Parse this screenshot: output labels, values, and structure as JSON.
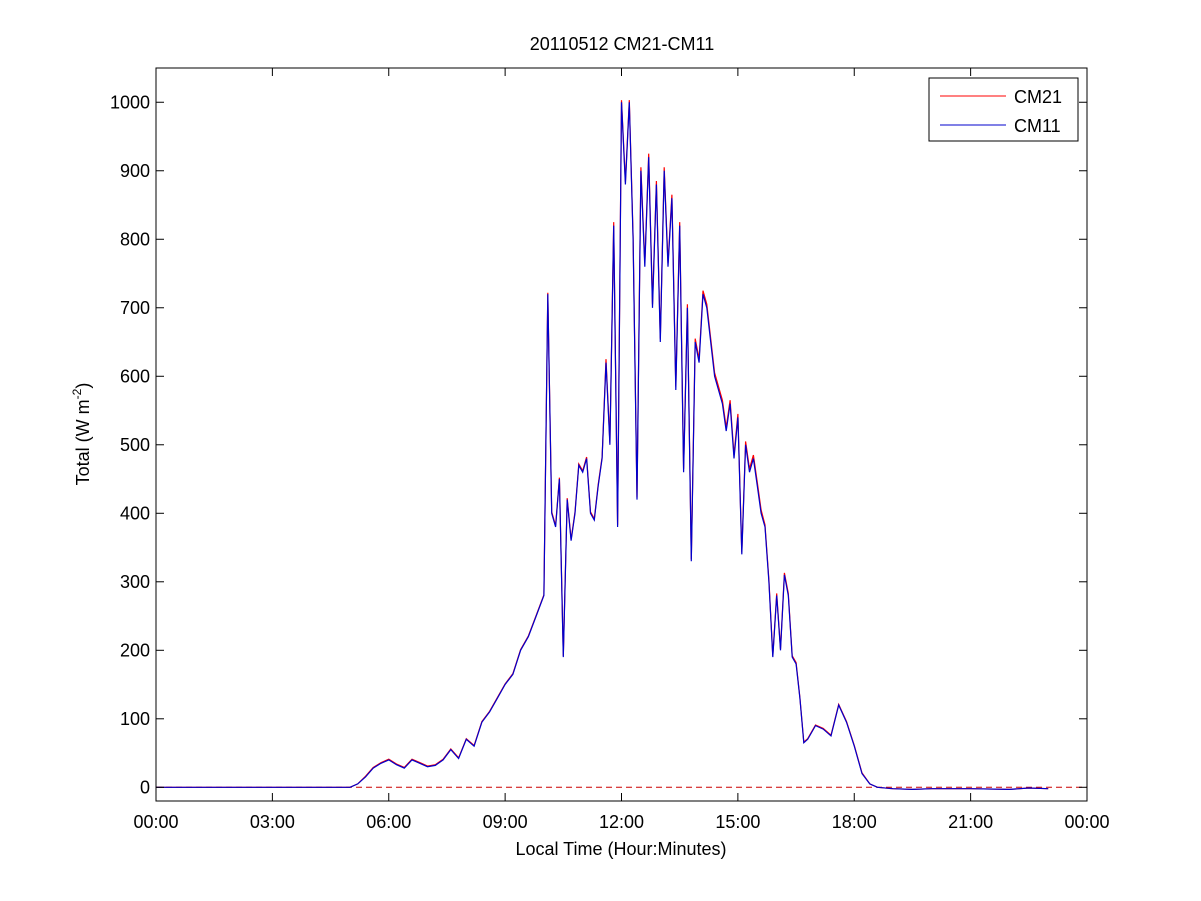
{
  "chart_data": {
    "type": "line",
    "title": "20110512 CM21-CM11",
    "xlabel": "Local Time (Hour:Minutes)",
    "ylabel_main": "Total (W m",
    "ylabel_sup": "-2",
    "ylabel_end": ")",
    "xlim": [
      0,
      24
    ],
    "ylim": [
      -20,
      1050
    ],
    "x_ticks": [
      0,
      3,
      6,
      9,
      12,
      15,
      18,
      21,
      24
    ],
    "x_tick_labels": [
      "00:00",
      "03:00",
      "06:00",
      "09:00",
      "12:00",
      "15:00",
      "18:00",
      "21:00",
      "00:00"
    ],
    "y_ticks": [
      0,
      100,
      200,
      300,
      400,
      500,
      600,
      700,
      800,
      900,
      1000
    ],
    "y_tick_labels": [
      "0",
      "100",
      "200",
      "300",
      "400",
      "500",
      "600",
      "700",
      "800",
      "900",
      "1000"
    ],
    "grid": false,
    "legend_position": "top-right",
    "reference_line": {
      "y": 0,
      "style": "dashed",
      "color": "#cc0000"
    },
    "series": [
      {
        "name": "CM21",
        "color": "#ff0000"
      },
      {
        "name": "CM11",
        "color": "#0000cc"
      }
    ],
    "x": [
      0,
      5.0,
      5.2,
      5.4,
      5.6,
      5.8,
      6.0,
      6.2,
      6.4,
      6.6,
      6.8,
      7.0,
      7.2,
      7.4,
      7.6,
      7.8,
      8.0,
      8.2,
      8.4,
      8.6,
      8.8,
      9.0,
      9.2,
      9.4,
      9.6,
      9.8,
      10.0,
      10.1,
      10.2,
      10.3,
      10.4,
      10.5,
      10.6,
      10.7,
      10.8,
      10.9,
      11.0,
      11.1,
      11.2,
      11.3,
      11.4,
      11.5,
      11.6,
      11.7,
      11.8,
      11.9,
      12.0,
      12.1,
      12.2,
      12.3,
      12.4,
      12.5,
      12.6,
      12.7,
      12.8,
      12.9,
      13.0,
      13.1,
      13.2,
      13.3,
      13.4,
      13.5,
      13.6,
      13.7,
      13.8,
      13.9,
      14.0,
      14.1,
      14.2,
      14.3,
      14.4,
      14.5,
      14.6,
      14.7,
      14.8,
      14.9,
      15.0,
      15.1,
      15.2,
      15.3,
      15.4,
      15.5,
      15.6,
      15.7,
      15.8,
      15.9,
      16.0,
      16.1,
      16.2,
      16.3,
      16.4,
      16.5,
      16.6,
      16.7,
      16.8,
      16.9,
      17.0,
      17.2,
      17.4,
      17.6,
      17.8,
      18.0,
      18.2,
      18.4,
      18.6,
      19.0,
      19.5,
      20.0,
      21.0,
      22.0,
      22.5,
      23.0
    ],
    "cm11": [
      0,
      0,
      5,
      15,
      28,
      35,
      40,
      33,
      28,
      40,
      35,
      30,
      32,
      40,
      55,
      42,
      70,
      60,
      95,
      110,
      130,
      150,
      165,
      200,
      220,
      250,
      280,
      720,
      400,
      380,
      450,
      190,
      420,
      360,
      400,
      470,
      460,
      480,
      400,
      390,
      440,
      480,
      620,
      500,
      820,
      380,
      1000,
      880,
      1000,
      800,
      420,
      900,
      760,
      920,
      700,
      880,
      650,
      900,
      760,
      860,
      580,
      820,
      460,
      700,
      330,
      650,
      620,
      720,
      700,
      650,
      600,
      580,
      560,
      520,
      560,
      480,
      540,
      340,
      500,
      460,
      480,
      440,
      400,
      380,
      300,
      190,
      280,
      200,
      310,
      280,
      190,
      180,
      130,
      65,
      70,
      80,
      90,
      85,
      75,
      120,
      95,
      60,
      20,
      5,
      0,
      -2,
      -3,
      -2,
      -2,
      -3,
      -1,
      -2
    ],
    "cm21": [
      0,
      0,
      5,
      16,
      29,
      36,
      41,
      34,
      29,
      41,
      36,
      31,
      33,
      41,
      56,
      43,
      71,
      61,
      96,
      111,
      131,
      151,
      166,
      201,
      221,
      251,
      281,
      722,
      402,
      382,
      452,
      192,
      422,
      362,
      402,
      472,
      462,
      482,
      402,
      392,
      442,
      482,
      625,
      503,
      825,
      383,
      1003,
      884,
      1003,
      804,
      423,
      905,
      765,
      925,
      705,
      885,
      655,
      905,
      765,
      865,
      585,
      825,
      465,
      705,
      333,
      655,
      625,
      725,
      705,
      655,
      605,
      585,
      565,
      525,
      565,
      485,
      545,
      343,
      505,
      465,
      485,
      445,
      405,
      383,
      303,
      192,
      283,
      202,
      313,
      283,
      192,
      182,
      131,
      66,
      71,
      81,
      91,
      86,
      76,
      121,
      96,
      61,
      21,
      5,
      0,
      -2,
      -3,
      -2,
      -2,
      -3,
      -1,
      -2
    ]
  }
}
